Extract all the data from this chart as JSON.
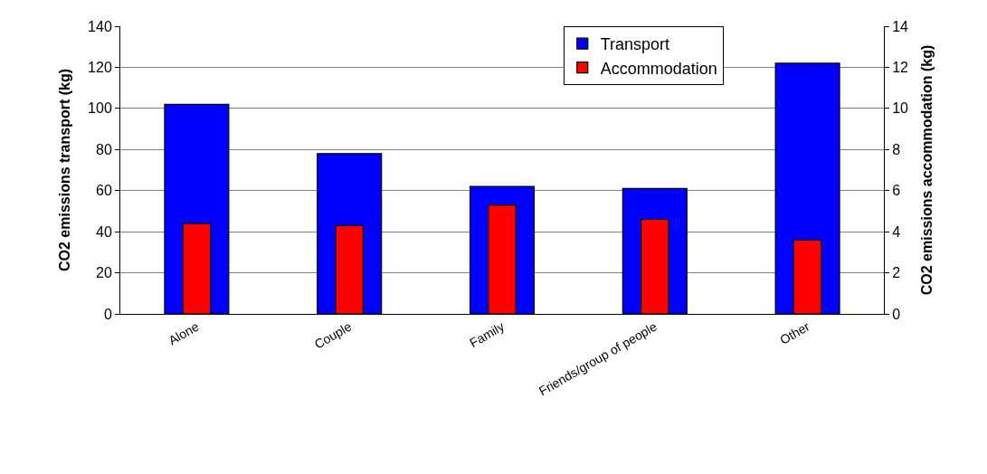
{
  "chart_data": {
    "type": "bar",
    "ylabel": "CO2 emissions transport (kg)",
    "y2label": "CO2 emissions accommodation (kg)",
    "categories": [
      "Alone",
      "Couple",
      "Family",
      "Friends/group of people",
      "Other"
    ],
    "series": [
      {
        "name": "Transport",
        "color": "#0000ff",
        "values": [
          102,
          78,
          62,
          61,
          122
        ]
      },
      {
        "name": "Accommodation",
        "color": "#ff0000",
        "axis": "y2",
        "values": [
          4.4,
          4.3,
          5.3,
          4.6,
          3.6
        ]
      }
    ],
    "ylim": [
      0,
      140
    ],
    "yticks": [
      0,
      20,
      40,
      60,
      80,
      100,
      120,
      140
    ],
    "y2lim": [
      0,
      14
    ],
    "y2ticks": [
      0,
      2,
      4,
      6,
      8,
      10,
      12,
      14
    ],
    "grid": "y",
    "legend": "top right"
  }
}
